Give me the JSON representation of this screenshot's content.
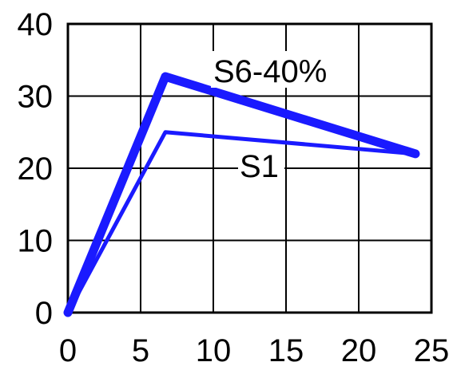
{
  "chart_data": {
    "type": "line",
    "xlim": [
      0,
      25
    ],
    "ylim": [
      0,
      40
    ],
    "x_ticks": [
      "0",
      "5",
      "10",
      "15",
      "20",
      "25"
    ],
    "y_ticks": [
      "0",
      "10",
      "20",
      "30",
      "40"
    ],
    "grid": true,
    "title": "",
    "xlabel": "",
    "ylabel": "",
    "series": [
      {
        "name": "S6-40%",
        "color": "#1a1aff",
        "emphasis": "thick",
        "points": [
          [
            0,
            0
          ],
          [
            6.7,
            32.7
          ],
          [
            23.9,
            22
          ]
        ]
      },
      {
        "name": "S1",
        "color": "#1a1aff",
        "emphasis": "thin",
        "points": [
          [
            0,
            0
          ],
          [
            6.7,
            25
          ],
          [
            23.9,
            22
          ]
        ]
      }
    ]
  }
}
